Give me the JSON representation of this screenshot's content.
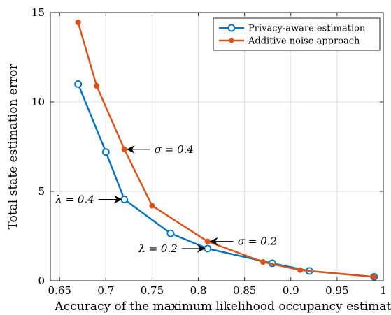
{
  "chart_data": {
    "type": "line",
    "title": "",
    "xlabel": "Accuracy of the maximum likelihood occupancy estimator",
    "ylabel": "Total state estimation error",
    "xlim": [
      0.64,
      1.0
    ],
    "ylim": [
      0,
      15
    ],
    "xticks": [
      0.65,
      0.7,
      0.75,
      0.8,
      0.85,
      0.9,
      0.95,
      1
    ],
    "xtick_labels": [
      "0.65",
      "0.7",
      "0.75",
      "0.8",
      "0.85",
      "0.9",
      "0.95",
      "1"
    ],
    "yticks": [
      0,
      5,
      10,
      15
    ],
    "ytick_labels": [
      "0",
      "5",
      "10",
      "15"
    ],
    "grid": true,
    "legend_position": "top-right",
    "series": [
      {
        "name": "Privacy-aware estimation",
        "color": "#0072BD",
        "marker": "open-circle",
        "x": [
          0.67,
          0.7,
          0.72,
          0.77,
          0.81,
          0.88,
          0.92,
          0.99
        ],
        "y": [
          11.0,
          7.2,
          4.55,
          2.65,
          1.8,
          0.98,
          0.55,
          0.22
        ]
      },
      {
        "name": "Additive noise approach",
        "color": "#D95319",
        "marker": "filled-dot",
        "x": [
          0.67,
          0.69,
          0.72,
          0.75,
          0.81,
          0.87,
          0.91,
          0.99
        ],
        "y": [
          14.45,
          10.9,
          7.35,
          4.2,
          2.2,
          1.05,
          0.6,
          0.22
        ]
      }
    ],
    "annotations": [
      {
        "text": "σ = 0.4",
        "x": 0.72,
        "y": 7.35,
        "side": "right"
      },
      {
        "text": "λ = 0.4",
        "x": 0.72,
        "y": 4.55,
        "side": "left"
      },
      {
        "text": "σ = 0.2",
        "x": 0.81,
        "y": 2.2,
        "side": "right"
      },
      {
        "text": "λ = 0.2",
        "x": 0.81,
        "y": 1.8,
        "side": "left"
      }
    ]
  }
}
